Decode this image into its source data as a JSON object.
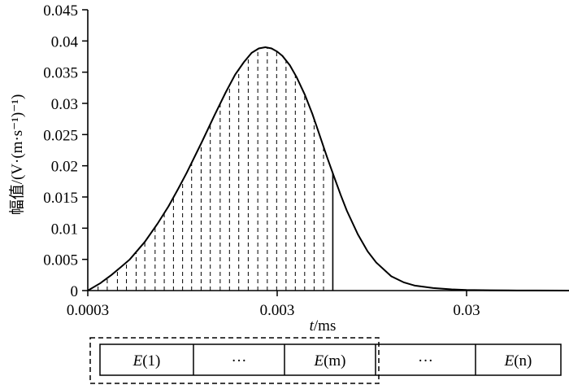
{
  "chart_data": {
    "type": "line",
    "x_scale": "log",
    "xlim": [
      0.0003,
      0.11
    ],
    "ylim": [
      0,
      0.045
    ],
    "x_ticks": [
      {
        "value": 0.0003,
        "label": "0.0003"
      },
      {
        "value": 0.003,
        "label": "0.003"
      },
      {
        "value": 0.03,
        "label": "0.03"
      }
    ],
    "y_ticks": [
      {
        "value": 0,
        "label": "0"
      },
      {
        "value": 0.005,
        "label": "0.005"
      },
      {
        "value": 0.01,
        "label": "0.01"
      },
      {
        "value": 0.015,
        "label": "0.015"
      },
      {
        "value": 0.02,
        "label": "0.02"
      },
      {
        "value": 0.025,
        "label": "0.025"
      },
      {
        "value": 0.03,
        "label": "0.03"
      },
      {
        "value": 0.035,
        "label": "0.035"
      },
      {
        "value": 0.04,
        "label": "0.04"
      },
      {
        "value": 0.045,
        "label": "0.045"
      }
    ],
    "xlabel_italic": "t",
    "xlabel_rest": "/ms",
    "ylabel": "幅值/(V·(m·s⁻¹)⁻¹)",
    "curve": {
      "x": [
        0.0003,
        0.00035,
        0.0004,
        0.00045,
        0.0005,
        0.0006,
        0.0007,
        0.0008,
        0.0009,
        0.001,
        0.0012,
        0.0014,
        0.0016,
        0.0018,
        0.002,
        0.0022,
        0.0024,
        0.0026,
        0.0028,
        0.003,
        0.0032,
        0.0035,
        0.0038,
        0.0042,
        0.0046,
        0.005,
        0.0055,
        0.006,
        0.0065,
        0.007,
        0.008,
        0.009,
        0.01,
        0.012,
        0.014,
        0.016,
        0.02,
        0.025,
        0.03,
        0.04,
        0.05,
        0.07,
        0.11
      ],
      "y": [
        0.0,
        0.0012,
        0.0025,
        0.0038,
        0.005,
        0.0078,
        0.0107,
        0.0135,
        0.0163,
        0.0189,
        0.0238,
        0.0281,
        0.0317,
        0.0346,
        0.0366,
        0.0381,
        0.0388,
        0.039,
        0.0388,
        0.0383,
        0.0376,
        0.0361,
        0.0342,
        0.0314,
        0.0283,
        0.0251,
        0.0214,
        0.0182,
        0.0153,
        0.0128,
        0.009,
        0.0063,
        0.0045,
        0.0023,
        0.0013,
        0.0008,
        0.0004,
        0.0002,
        0.0001,
        5e-05,
        2e-05,
        1e-05,
        0.0
      ]
    },
    "dashed_lines_x": [
      0.00034,
      0.00038,
      0.00043,
      0.00048,
      0.00054,
      0.0006,
      0.00068,
      0.00076,
      0.00085,
      0.00095,
      0.00106,
      0.00119,
      0.00133,
      0.0015,
      0.00168,
      0.00188,
      0.00211,
      0.00237,
      0.00266,
      0.00298,
      0.00334,
      0.00374,
      0.00419,
      0.0047,
      0.00527
    ],
    "solid_line_x": 0.0059
  },
  "segments": [
    {
      "italic": "E",
      "rest": "(1)"
    },
    {
      "italic": "",
      "rest": "···"
    },
    {
      "italic": "E",
      "rest": "(m)"
    },
    {
      "italic": "",
      "rest": "···"
    },
    {
      "italic": "E",
      "rest": "(n)"
    }
  ]
}
